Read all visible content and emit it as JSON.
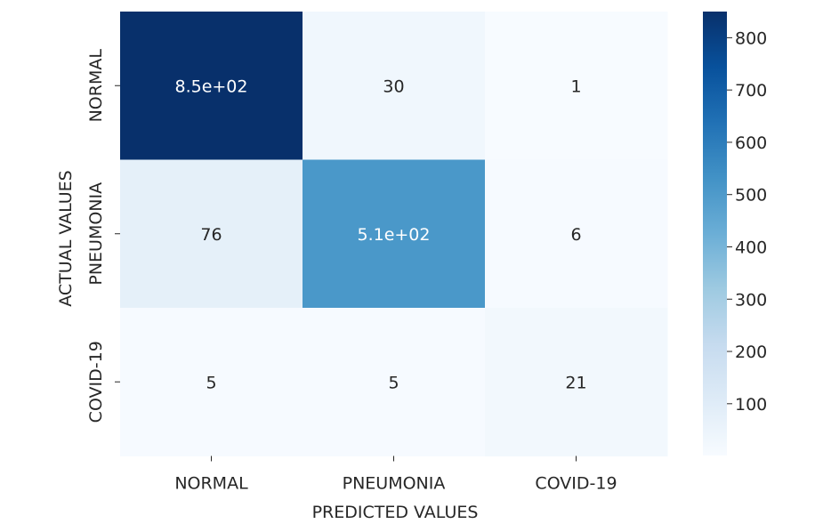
{
  "chart_data": {
    "type": "heatmap",
    "title": "",
    "xlabel": "PREDICTED VALUES",
    "ylabel": "ACTUAL VALUES",
    "x_categories": [
      "NORMAL",
      "PNEUMONIA",
      "COVID-19"
    ],
    "y_categories": [
      "NORMAL",
      "PNEUMONIA",
      "COVID-19"
    ],
    "values": [
      [
        850,
        30,
        1
      ],
      [
        76,
        510,
        6
      ],
      [
        5,
        5,
        21
      ]
    ],
    "cell_labels": [
      [
        "8.5e+02",
        "30",
        "1"
      ],
      [
        "76",
        "5.1e+02",
        "6"
      ],
      [
        "5",
        "5",
        "21"
      ]
    ],
    "colormap": "Blues",
    "colorbar": {
      "range": [
        1,
        850
      ],
      "ticks": [
        100,
        200,
        300,
        400,
        500,
        600,
        700,
        800
      ]
    }
  }
}
